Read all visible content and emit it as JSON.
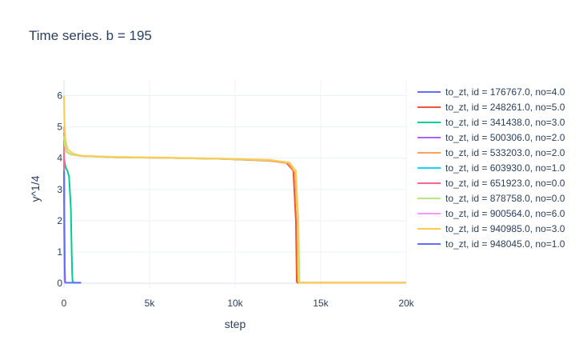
{
  "chart_data": {
    "type": "line",
    "title": "Time series.  b = 195",
    "xlabel": "step",
    "ylabel": "y^1/4",
    "xlim": [
      0,
      20000
    ],
    "ylim": [
      -0.15,
      6.5
    ],
    "x_ticks": [
      0,
      5000,
      10000,
      15000,
      20000
    ],
    "x_tick_labels": [
      "0",
      "5k",
      "10k",
      "15k",
      "20k"
    ],
    "y_ticks": [
      0,
      1,
      2,
      3,
      4,
      5,
      6
    ],
    "y_tick_labels": [
      "0",
      "1",
      "2",
      "3",
      "4",
      "5",
      "6"
    ],
    "grid": true,
    "legend_position": "right",
    "series": [
      {
        "name": "to_zt, id = 176767.0, no=4.0",
        "color": "#636efa",
        "x": [
          0,
          40,
          60,
          80,
          100
        ],
        "y": [
          4.2,
          0.5,
          0.02,
          0.02,
          0.02
        ]
      },
      {
        "name": "to_zt, id = 248261.0, no=5.0",
        "color": "#ef553b",
        "x": [
          0,
          50,
          150,
          400,
          1000,
          3000,
          6000,
          9000,
          12000,
          13000,
          13400,
          13550,
          13600,
          13650,
          20000
        ],
        "y": [
          4.8,
          4.4,
          4.2,
          4.12,
          4.07,
          4.03,
          4.01,
          3.98,
          3.92,
          3.85,
          3.6,
          2.0,
          0.05,
          0.02,
          0.02
        ]
      },
      {
        "name": "to_zt, id = 341438.0, no=3.0",
        "color": "#00cc96",
        "x": [
          0,
          50,
          100,
          200,
          300,
          400,
          450,
          480,
          500,
          550,
          600,
          700,
          1000
        ],
        "y": [
          4.0,
          3.85,
          3.7,
          3.6,
          3.4,
          2.4,
          1.0,
          0.3,
          0.08,
          0.03,
          0.02,
          0.02,
          0.02
        ]
      },
      {
        "name": "to_zt, id = 500306.0, no=2.0",
        "color": "#ab63fa",
        "x": [
          0,
          20,
          40,
          60,
          80,
          100
        ],
        "y": [
          3.5,
          1.5,
          0.1,
          0.02,
          0.02,
          0.02
        ]
      },
      {
        "name": "to_zt, id = 533203.0, no=2.0",
        "color": "#ffa15a",
        "x": [
          0,
          50,
          150,
          400,
          1000,
          3000,
          6000,
          9000,
          12000,
          13100,
          13500,
          13650,
          13700,
          13750,
          20000
        ],
        "y": [
          5.0,
          4.45,
          4.22,
          4.12,
          4.07,
          4.03,
          4.01,
          3.98,
          3.93,
          3.85,
          3.55,
          2.0,
          0.05,
          0.02,
          0.02
        ]
      },
      {
        "name": "to_zt, id = 603930.0, no=1.0",
        "color": "#19d3f3",
        "x": [
          0,
          30,
          50,
          70,
          100
        ],
        "y": [
          3.0,
          0.8,
          0.02,
          0.02,
          0.02
        ]
      },
      {
        "name": "to_zt, id = 651923.0, no=0.0",
        "color": "#ff6692",
        "x": [
          0,
          40,
          60,
          80,
          100
        ],
        "y": [
          4.6,
          0.8,
          0.02,
          0.02,
          0.02
        ]
      },
      {
        "name": "to_zt, id = 878758.0, no=0.0",
        "color": "#b6e880",
        "x": [
          0,
          50,
          150,
          400,
          1000,
          3000,
          6000,
          9000,
          12000,
          13150,
          13550,
          13700,
          13760,
          13800,
          20000
        ],
        "y": [
          4.7,
          4.4,
          4.2,
          4.12,
          4.07,
          4.03,
          4.01,
          3.98,
          3.94,
          3.87,
          3.6,
          2.0,
          0.05,
          0.02,
          0.02
        ]
      },
      {
        "name": "to_zt, id = 900564.0, no=6.0",
        "color": "#ff97ff",
        "x": [
          0,
          30,
          50,
          70,
          100
        ],
        "y": [
          2.5,
          0.5,
          0.02,
          0.02,
          0.02
        ]
      },
      {
        "name": "to_zt, id = 940985.0, no=3.0",
        "color": "#fecb52",
        "x": [
          0,
          30,
          80,
          200,
          500,
          1000,
          3000,
          6000,
          9000,
          12000,
          13200,
          13550,
          13650,
          13700,
          13750,
          20000
        ],
        "y": [
          6.0,
          5.2,
          4.6,
          4.3,
          4.15,
          4.08,
          4.04,
          4.02,
          3.99,
          3.95,
          3.85,
          3.55,
          2.0,
          0.05,
          0.02,
          0.02
        ]
      },
      {
        "name": "to_zt, id = 948045.0, no=1.0",
        "color": "#636efa",
        "x": [
          0,
          30,
          60,
          100,
          200,
          500,
          1000
        ],
        "y": [
          3.6,
          1.0,
          0.05,
          0.02,
          0.02,
          0.02,
          0.02
        ]
      }
    ]
  }
}
